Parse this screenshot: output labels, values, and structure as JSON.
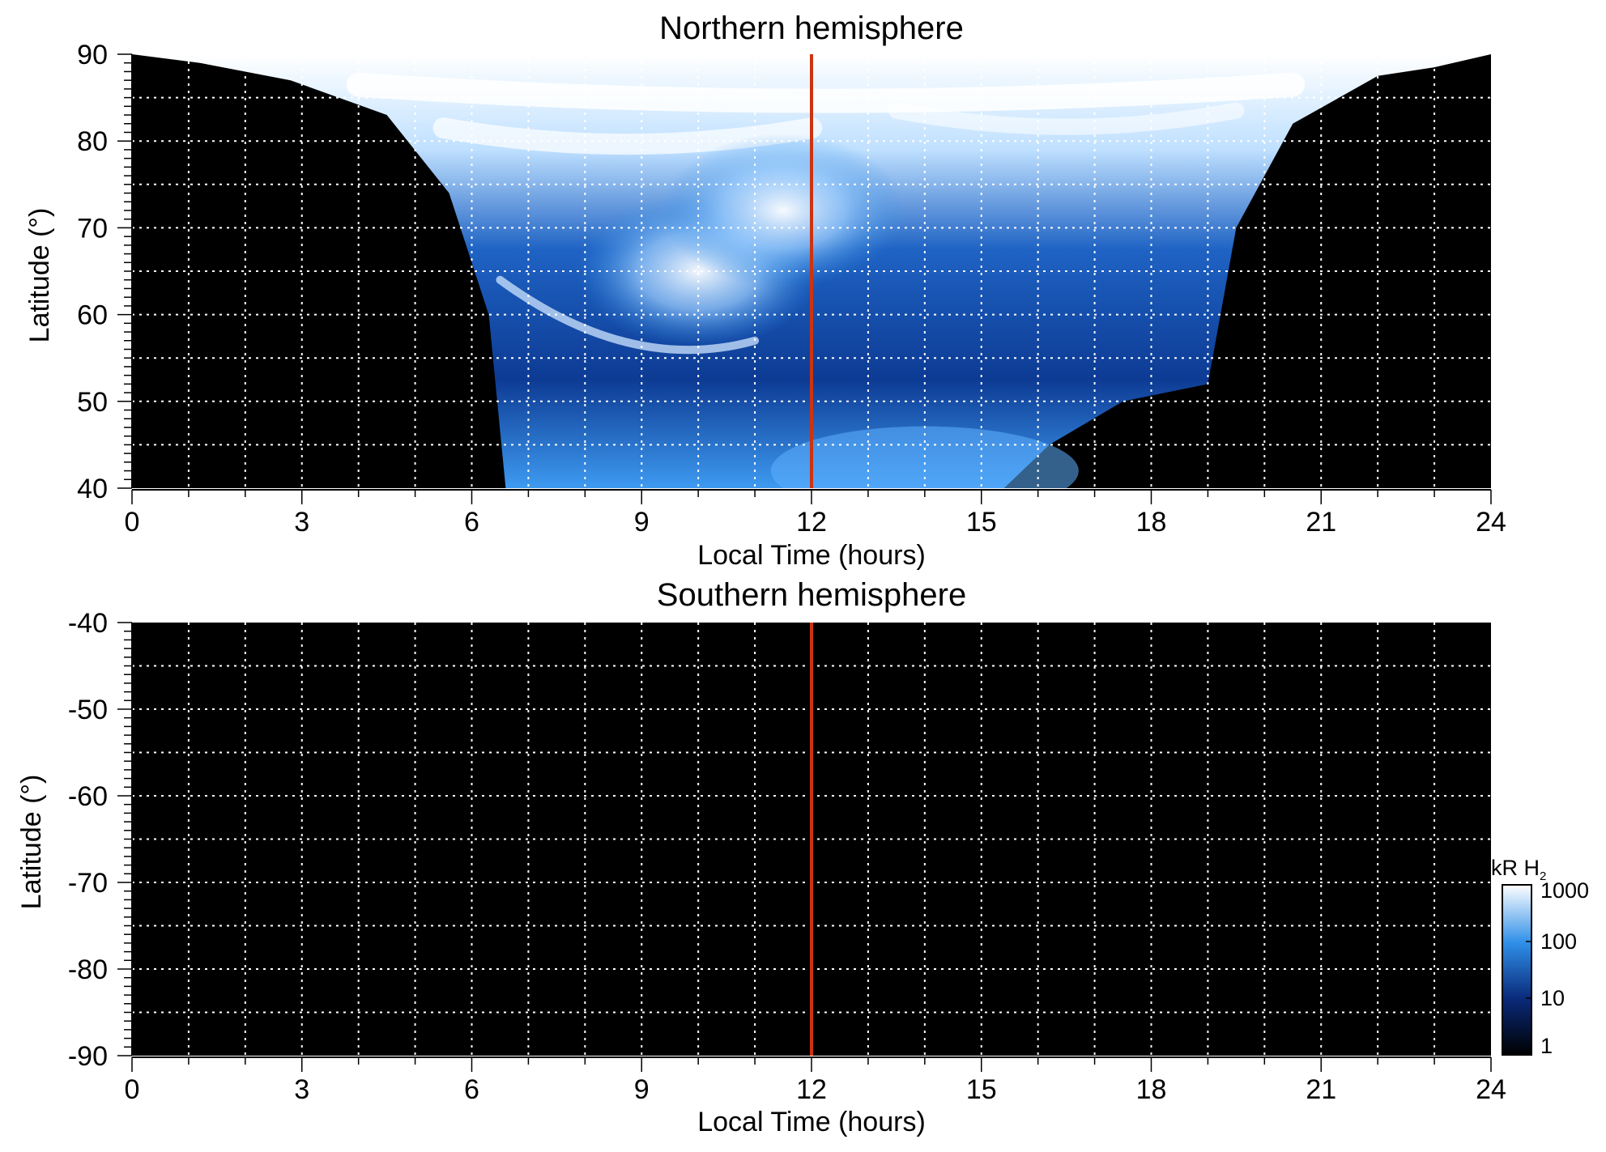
{
  "chart_data": [
    {
      "type": "heatmap",
      "title": "Northern hemisphere",
      "xlabel": "Local Time (hours)",
      "ylabel": "Latitude (°)",
      "xlim": [
        0,
        24
      ],
      "ylim": [
        40,
        90
      ],
      "xticks": [
        "0",
        "3",
        "6",
        "9",
        "12",
        "15",
        "18",
        "21",
        "24"
      ],
      "xtick_values": [
        0,
        3,
        6,
        9,
        12,
        15,
        18,
        21,
        24
      ],
      "yticks": [
        "40",
        "50",
        "60",
        "70",
        "80",
        "90"
      ],
      "ytick_values": [
        40,
        50,
        60,
        70,
        80,
        90
      ],
      "grid": true,
      "noon_line_hour": 12,
      "noon_line_color": "#cc3311",
      "emission_region": {
        "lower_boundary": [
          {
            "lt": 0,
            "lat": 90
          },
          {
            "lt": 1.2,
            "lat": 89
          },
          {
            "lt": 2.8,
            "lat": 87
          },
          {
            "lt": 4.5,
            "lat": 83
          },
          {
            "lt": 5.6,
            "lat": 74
          },
          {
            "lt": 6.3,
            "lat": 60
          },
          {
            "lt": 6.6,
            "lat": 40
          },
          {
            "lt": 15.4,
            "lat": 40
          },
          {
            "lt": 16.2,
            "lat": 45
          },
          {
            "lt": 17.5,
            "lat": 50
          },
          {
            "lt": 19.0,
            "lat": 52
          },
          {
            "lt": 19.5,
            "lat": 70
          },
          {
            "lt": 20.5,
            "lat": 82
          },
          {
            "lt": 22.0,
            "lat": 87.5
          },
          {
            "lt": 23.0,
            "lat": 88.5
          },
          {
            "lt": 24,
            "lat": 90
          }
        ],
        "bright_bands": [
          {
            "name": "polar-cap-arc",
            "description_lat_range": [
              80,
              90
            ]
          },
          {
            "name": "morning-swirl",
            "center_lt": 10,
            "center_lat": 65
          },
          {
            "name": "noon-cusp",
            "center_lt": 11.5,
            "center_lat": 72
          }
        ]
      }
    },
    {
      "type": "heatmap",
      "title": "Southern hemisphere",
      "xlabel": "Local Time (hours)",
      "ylabel": "Latitude (°)",
      "xlim": [
        0,
        24
      ],
      "ylim": [
        -90,
        -40
      ],
      "xticks": [
        "0",
        "3",
        "6",
        "9",
        "12",
        "15",
        "18",
        "21",
        "24"
      ],
      "xtick_values": [
        0,
        3,
        6,
        9,
        12,
        15,
        18,
        21,
        24
      ],
      "yticks": [
        "-40",
        "-50",
        "-60",
        "-70",
        "-80",
        "-90"
      ],
      "ytick_values": [
        -40,
        -50,
        -60,
        -70,
        -80,
        -90
      ],
      "grid": true,
      "noon_line_hour": 12,
      "noon_line_color": "#cc3311",
      "emission_region": null
    }
  ],
  "colorbar": {
    "title_main": "kR H",
    "title_sub": "2",
    "labels": [
      "1000",
      "100",
      "10",
      "1"
    ],
    "values": [
      1000,
      100,
      10,
      1
    ],
    "scale": "log",
    "colors": [
      "#ffffff",
      "#2f8fe8",
      "#0a2a7a",
      "#000000"
    ]
  }
}
